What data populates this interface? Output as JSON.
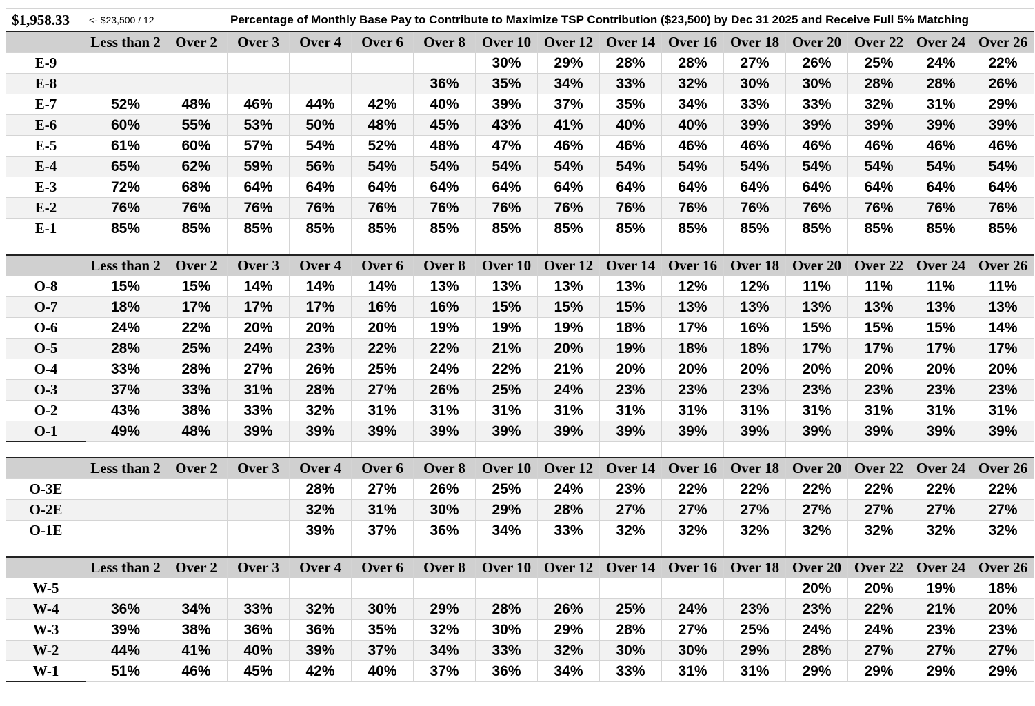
{
  "header": {
    "monthly_amount": "$1,958.33",
    "formula_note": "<- $23,500 / 12",
    "title": "Percentage of Monthly Base Pay to Contribute to Maximize TSP Contribution ($23,500) by Dec 31 2025 and Receive Full 5% Matching"
  },
  "columns": [
    "Less than 2",
    "Over 2",
    "Over 3",
    "Over 4",
    "Over 6",
    "Over 8",
    "Over 10",
    "Over 12",
    "Over 14",
    "Over 16",
    "Over 18",
    "Over 20",
    "Over 22",
    "Over 24",
    "Over 26"
  ],
  "sections": [
    {
      "name": "enlisted",
      "rows": [
        {
          "grade": "E-9",
          "values": [
            "",
            "",
            "",
            "",
            "",
            "",
            "30%",
            "29%",
            "28%",
            "28%",
            "27%",
            "26%",
            "25%",
            "24%",
            "22%"
          ]
        },
        {
          "grade": "E-8",
          "values": [
            "",
            "",
            "",
            "",
            "",
            "36%",
            "35%",
            "34%",
            "33%",
            "32%",
            "30%",
            "30%",
            "28%",
            "28%",
            "26%"
          ]
        },
        {
          "grade": "E-7",
          "values": [
            "52%",
            "48%",
            "46%",
            "44%",
            "42%",
            "40%",
            "39%",
            "37%",
            "35%",
            "34%",
            "33%",
            "33%",
            "32%",
            "31%",
            "29%"
          ]
        },
        {
          "grade": "E-6",
          "values": [
            "60%",
            "55%",
            "53%",
            "50%",
            "48%",
            "45%",
            "43%",
            "41%",
            "40%",
            "40%",
            "39%",
            "39%",
            "39%",
            "39%",
            "39%"
          ]
        },
        {
          "grade": "E-5",
          "values": [
            "61%",
            "60%",
            "57%",
            "54%",
            "52%",
            "48%",
            "47%",
            "46%",
            "46%",
            "46%",
            "46%",
            "46%",
            "46%",
            "46%",
            "46%"
          ]
        },
        {
          "grade": "E-4",
          "values": [
            "65%",
            "62%",
            "59%",
            "56%",
            "54%",
            "54%",
            "54%",
            "54%",
            "54%",
            "54%",
            "54%",
            "54%",
            "54%",
            "54%",
            "54%"
          ]
        },
        {
          "grade": "E-3",
          "values": [
            "72%",
            "68%",
            "64%",
            "64%",
            "64%",
            "64%",
            "64%",
            "64%",
            "64%",
            "64%",
            "64%",
            "64%",
            "64%",
            "64%",
            "64%"
          ]
        },
        {
          "grade": "E-2",
          "values": [
            "76%",
            "76%",
            "76%",
            "76%",
            "76%",
            "76%",
            "76%",
            "76%",
            "76%",
            "76%",
            "76%",
            "76%",
            "76%",
            "76%",
            "76%"
          ]
        },
        {
          "grade": "E-1",
          "values": [
            "85%",
            "85%",
            "85%",
            "85%",
            "85%",
            "85%",
            "85%",
            "85%",
            "85%",
            "85%",
            "85%",
            "85%",
            "85%",
            "85%",
            "85%"
          ]
        }
      ]
    },
    {
      "name": "officer",
      "rows": [
        {
          "grade": "O-8",
          "values": [
            "15%",
            "15%",
            "14%",
            "14%",
            "14%",
            "13%",
            "13%",
            "13%",
            "13%",
            "12%",
            "12%",
            "11%",
            "11%",
            "11%",
            "11%"
          ]
        },
        {
          "grade": "O-7",
          "values": [
            "18%",
            "17%",
            "17%",
            "17%",
            "16%",
            "16%",
            "15%",
            "15%",
            "15%",
            "13%",
            "13%",
            "13%",
            "13%",
            "13%",
            "13%"
          ]
        },
        {
          "grade": "O-6",
          "values": [
            "24%",
            "22%",
            "20%",
            "20%",
            "20%",
            "19%",
            "19%",
            "19%",
            "18%",
            "17%",
            "16%",
            "15%",
            "15%",
            "15%",
            "14%"
          ]
        },
        {
          "grade": "O-5",
          "values": [
            "28%",
            "25%",
            "24%",
            "23%",
            "22%",
            "22%",
            "21%",
            "20%",
            "19%",
            "18%",
            "18%",
            "17%",
            "17%",
            "17%",
            "17%"
          ]
        },
        {
          "grade": "O-4",
          "values": [
            "33%",
            "28%",
            "27%",
            "26%",
            "25%",
            "24%",
            "22%",
            "21%",
            "20%",
            "20%",
            "20%",
            "20%",
            "20%",
            "20%",
            "20%"
          ]
        },
        {
          "grade": "O-3",
          "values": [
            "37%",
            "33%",
            "31%",
            "28%",
            "27%",
            "26%",
            "25%",
            "24%",
            "23%",
            "23%",
            "23%",
            "23%",
            "23%",
            "23%",
            "23%"
          ]
        },
        {
          "grade": "O-2",
          "values": [
            "43%",
            "38%",
            "33%",
            "32%",
            "31%",
            "31%",
            "31%",
            "31%",
            "31%",
            "31%",
            "31%",
            "31%",
            "31%",
            "31%",
            "31%"
          ]
        },
        {
          "grade": "O-1",
          "values": [
            "49%",
            "48%",
            "39%",
            "39%",
            "39%",
            "39%",
            "39%",
            "39%",
            "39%",
            "39%",
            "39%",
            "39%",
            "39%",
            "39%",
            "39%"
          ]
        }
      ]
    },
    {
      "name": "officer-prior-enlisted",
      "rows": [
        {
          "grade": "O-3E",
          "values": [
            "",
            "",
            "",
            "28%",
            "27%",
            "26%",
            "25%",
            "24%",
            "23%",
            "22%",
            "22%",
            "22%",
            "22%",
            "22%",
            "22%"
          ]
        },
        {
          "grade": "O-2E",
          "values": [
            "",
            "",
            "",
            "32%",
            "31%",
            "30%",
            "29%",
            "28%",
            "27%",
            "27%",
            "27%",
            "27%",
            "27%",
            "27%",
            "27%"
          ]
        },
        {
          "grade": "O-1E",
          "values": [
            "",
            "",
            "",
            "39%",
            "37%",
            "36%",
            "34%",
            "33%",
            "32%",
            "32%",
            "32%",
            "32%",
            "32%",
            "32%",
            "32%"
          ]
        }
      ]
    },
    {
      "name": "warrant",
      "rows": [
        {
          "grade": "W-5",
          "values": [
            "",
            "",
            "",
            "",
            "",
            "",
            "",
            "",
            "",
            "",
            "",
            "20%",
            "20%",
            "19%",
            "18%"
          ]
        },
        {
          "grade": "W-4",
          "values": [
            "36%",
            "34%",
            "33%",
            "32%",
            "30%",
            "29%",
            "28%",
            "26%",
            "25%",
            "24%",
            "23%",
            "23%",
            "22%",
            "21%",
            "20%"
          ]
        },
        {
          "grade": "W-3",
          "values": [
            "39%",
            "38%",
            "36%",
            "36%",
            "35%",
            "32%",
            "30%",
            "29%",
            "28%",
            "27%",
            "25%",
            "24%",
            "24%",
            "23%",
            "23%"
          ]
        },
        {
          "grade": "W-2",
          "values": [
            "44%",
            "41%",
            "40%",
            "39%",
            "37%",
            "34%",
            "33%",
            "32%",
            "30%",
            "30%",
            "29%",
            "28%",
            "27%",
            "27%",
            "27%"
          ]
        },
        {
          "grade": "W-1",
          "values": [
            "51%",
            "46%",
            "45%",
            "42%",
            "40%",
            "37%",
            "36%",
            "34%",
            "33%",
            "31%",
            "31%",
            "29%",
            "29%",
            "29%",
            "29%"
          ]
        }
      ]
    }
  ]
}
